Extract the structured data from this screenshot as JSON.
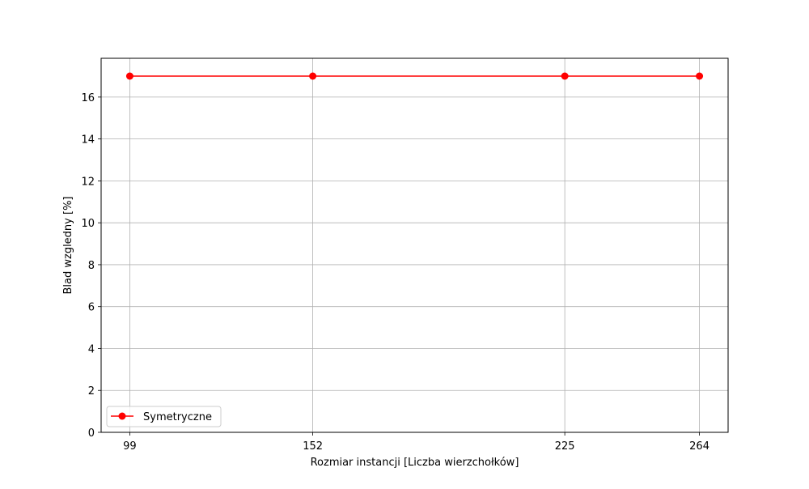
{
  "chart_data": {
    "type": "line",
    "title": "",
    "xlabel": "Rozmiar instancji [Liczba wierzchołków]",
    "ylabel": "Blad wzgledny [%]",
    "x": [
      99,
      152,
      225,
      264
    ],
    "xticks": [
      99,
      152,
      225,
      264
    ],
    "xlim": [
      90.7,
      272.3
    ],
    "yticks": [
      0,
      2,
      4,
      6,
      8,
      10,
      12,
      14,
      16
    ],
    "ylim": [
      0,
      17.85
    ],
    "grid": true,
    "legend_position": "lower-left",
    "series": [
      {
        "name": "Symetryczne",
        "values": [
          17,
          17,
          17,
          17
        ],
        "color": "#ff0000",
        "marker": "circle"
      }
    ]
  }
}
